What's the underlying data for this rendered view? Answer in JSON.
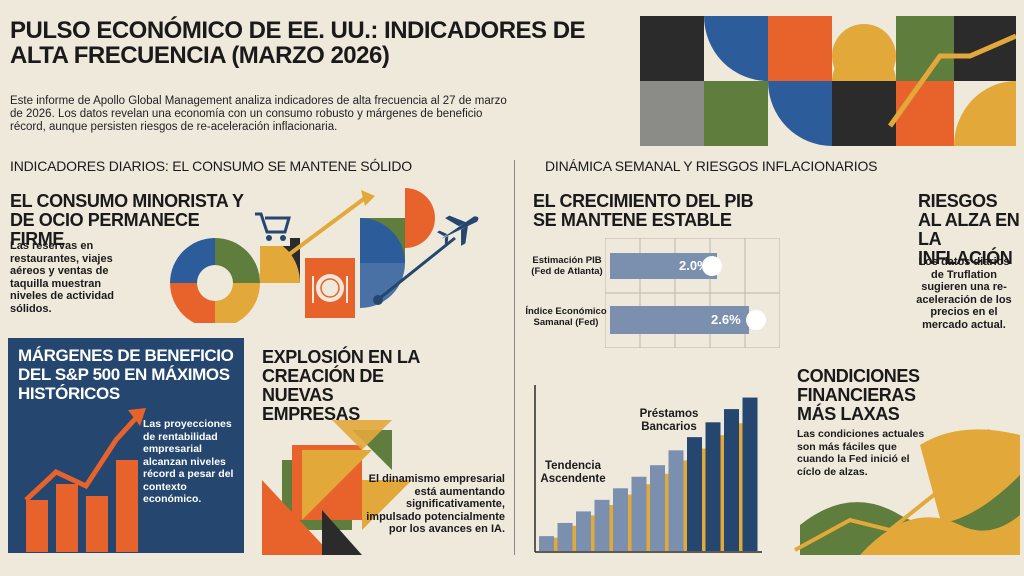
{
  "header": {
    "title": "PULSO ECONÓMICO DE EE. UU.: INDICADORES DE ALTA FRECUENCIA (MARZO 2026)",
    "intro": "Este informe de Apollo Global Management analiza indicadores de alta frecuencia al 27 de marzo de 2026. Los datos revelan una economía con un consumo robusto y márgenes de beneficio récord, aunque persisten riesgos de re-aceleración inflacionaria."
  },
  "left_section": {
    "heading": "INDICADORES DIARIOS: EL CONSUMO SE MANTENE SÓLIDO",
    "consumo": {
      "title": "EL CONSUMO MINORISTA Y DE OCIO PERMANECE FIRME",
      "body": "Las reservas en restaurantes, viajes aéreos y ventas de taquilla muestran niveles de actividad sólidos."
    },
    "margenes": {
      "title": "MÁRGENES DE BENEFICIO DEL S&P 500 EN MÁXIMOS HISTÓRICOS",
      "body": "Las proyecciones de rentabilidad empresarial alcanzan niveles récord a pesar del contexto económico."
    },
    "empresas": {
      "title": "EXPLOSIÓN EN LA CREACIÓN DE NUEVAS EMPRESAS",
      "body": "El dinamismo empresarial está aumentando significativamente, impulsado potencialmente por los avances en IA."
    }
  },
  "right_section": {
    "heading": "DINÁMICA SEMANAL Y RIESGOS INFLACIONARIOS",
    "pib": {
      "title": "EL CRECIMIENTO DEL PIB SE MANTENE ESTABLE",
      "rows": [
        {
          "label": "Estimación PIB (Fed de Atlanta)",
          "value": 2.0,
          "display": "2.0%"
        },
        {
          "label": "Índice Económico Samanal (Fed)",
          "value": 2.6,
          "display": "2.6%"
        }
      ]
    },
    "riesgos": {
      "title": "RIESGOS AL ALZA EN LA INFLACIÓN",
      "body": "Los datos diarios de Truflation sugieren una re-aceleración de los precios en el mercado actual."
    },
    "prestamos": {
      "label_top": "Préstamos Bancarios",
      "label_trend": "Tendencia Ascendente",
      "bars": [
        0.09,
        0.17,
        0.24,
        0.31,
        0.38,
        0.45,
        0.52,
        0.61,
        0.69,
        0.78,
        0.86,
        0.93
      ]
    },
    "condiciones": {
      "title": "CONDICIONES FINANCIERAS MÁS LAXAS",
      "body": "Las condiciones actuales son más fáciles que cuando la Fed inició el cíclo de alzas."
    }
  },
  "colors": {
    "orange": "#e8632b",
    "navy": "#25466f",
    "blue": "#2d5c9b",
    "green": "#5f7d3c",
    "mustard": "#e2a93a",
    "dark": "#2b2b2b",
    "slate": "#7b8fae",
    "grey": "#8b8b87"
  }
}
